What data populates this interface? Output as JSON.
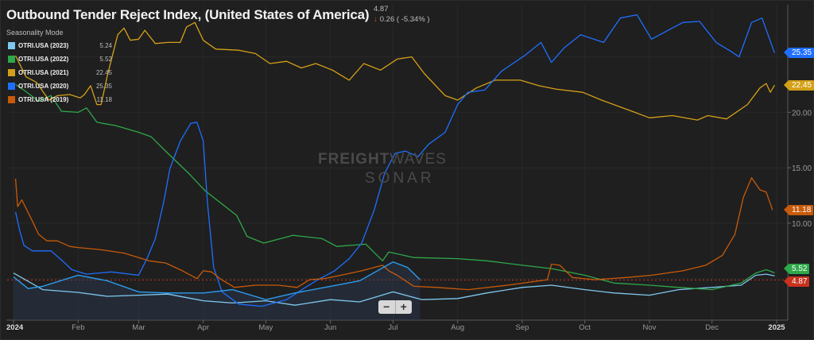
{
  "header": {
    "title": "Outbound Tender Reject Index, (United States of America)",
    "last_value": "4.87",
    "change_icon": "arrow-down-icon",
    "change_arrow": "↓",
    "change": "0.26 ( -5.34% )",
    "change_color": "#e24a3b"
  },
  "mode_label": "Seasonality Mode",
  "zoom_controls": {
    "minus": "−",
    "plus": "+"
  },
  "watermark": {
    "brand_bold": "FREIGHT",
    "brand_thin": "WAVES",
    "sub": "SONAR"
  },
  "chart_data": {
    "type": "line",
    "title": "Outbound Tender Reject Index, (United States of America)",
    "xlim": [
      "2024-01-01",
      "2025-01-01"
    ],
    "ylim": [
      1.25,
      29.7
    ],
    "grid": true,
    "legend_placement": "top-left",
    "x_ticks": [
      {
        "date": "2024-01-01",
        "label": "2024",
        "bold": true
      },
      {
        "date": "2024-02-01",
        "label": "Feb"
      },
      {
        "date": "2024-03-01",
        "label": "Mar"
      },
      {
        "date": "2024-04-01",
        "label": "Apr"
      },
      {
        "date": "2024-05-01",
        "label": "May"
      },
      {
        "date": "2024-06-01",
        "label": "Jun"
      },
      {
        "date": "2024-07-01",
        "label": "Jul"
      },
      {
        "date": "2024-08-01",
        "label": "Aug"
      },
      {
        "date": "2024-09-01",
        "label": "Sep"
      },
      {
        "date": "2024-10-01",
        "label": "Oct"
      },
      {
        "date": "2024-11-01",
        "label": "Nov"
      },
      {
        "date": "2024-12-01",
        "label": "Dec"
      },
      {
        "date": "2025-01-01",
        "label": "2025",
        "bold": true
      }
    ],
    "y_ticks": [
      {
        "value": 10,
        "label": "10.00"
      },
      {
        "value": 15,
        "label": "15.00"
      },
      {
        "value": 20,
        "label": "20.00"
      }
    ],
    "reference_line": {
      "value": 4.87,
      "label": "4.87",
      "color": "#c8321e"
    },
    "current_series": {
      "color": "#2b9bf0",
      "area": true,
      "points": [
        [
          "2024-01-01",
          5.15
        ],
        [
          "2024-01-08",
          4.1
        ],
        [
          "2024-01-15",
          4.3
        ],
        [
          "2024-02-01",
          5.3
        ],
        [
          "2024-02-15",
          4.8
        ],
        [
          "2024-03-01",
          3.8
        ],
        [
          "2024-03-15",
          3.7
        ],
        [
          "2024-04-01",
          3.7
        ],
        [
          "2024-04-15",
          4.0
        ],
        [
          "2024-05-01",
          3.1
        ],
        [
          "2024-05-15",
          3.7
        ],
        [
          "2024-06-01",
          4.3
        ],
        [
          "2024-06-15",
          4.8
        ],
        [
          "2024-07-01",
          6.5
        ],
        [
          "2024-07-08",
          6.0
        ],
        [
          "2024-07-14",
          4.9
        ]
      ]
    },
    "series": [
      {
        "name": "OTRI.USA (2023)",
        "value": "5.24",
        "color": "#7ec8f0",
        "points": [
          [
            "2024-01-01",
            5.5
          ],
          [
            "2024-01-15",
            4.0
          ],
          [
            "2024-02-01",
            3.75
          ],
          [
            "2024-02-15",
            3.4
          ],
          [
            "2024-03-01",
            3.5
          ],
          [
            "2024-03-15",
            3.6
          ],
          [
            "2024-04-01",
            3.0
          ],
          [
            "2024-04-15",
            2.8
          ],
          [
            "2024-05-01",
            3.0
          ],
          [
            "2024-05-15",
            2.6
          ],
          [
            "2024-06-01",
            3.1
          ],
          [
            "2024-06-15",
            2.9
          ],
          [
            "2024-07-01",
            3.8
          ],
          [
            "2024-07-15",
            3.1
          ],
          [
            "2024-08-01",
            3.2
          ],
          [
            "2024-08-15",
            3.7
          ],
          [
            "2024-09-01",
            4.2
          ],
          [
            "2024-09-15",
            4.4
          ],
          [
            "2024-10-01",
            4.0
          ],
          [
            "2024-10-15",
            3.7
          ],
          [
            "2024-11-01",
            3.5
          ],
          [
            "2024-11-15",
            4.0
          ],
          [
            "2024-12-01",
            4.2
          ],
          [
            "2024-12-15",
            4.4
          ],
          [
            "2024-12-22",
            5.3
          ],
          [
            "2024-12-27",
            5.4
          ],
          [
            "2024-12-31",
            5.24
          ]
        ]
      },
      {
        "name": "OTRI.USA (2022)",
        "value": "5.52",
        "color": "#2ea84a",
        "points": [
          [
            "2024-01-02",
            22.5
          ],
          [
            "2024-01-06",
            22.0
          ],
          [
            "2024-01-13",
            21.0
          ],
          [
            "2024-01-19",
            21.5
          ],
          [
            "2024-01-24",
            20.1
          ],
          [
            "2024-02-01",
            20.0
          ],
          [
            "2024-02-05",
            20.4
          ],
          [
            "2024-02-10",
            19.1
          ],
          [
            "2024-02-19",
            18.8
          ],
          [
            "2024-03-01",
            18.2
          ],
          [
            "2024-03-07",
            17.8
          ],
          [
            "2024-03-15",
            16.3
          ],
          [
            "2024-03-25",
            14.5
          ],
          [
            "2024-04-02",
            12.9
          ],
          [
            "2024-04-17",
            10.7
          ],
          [
            "2024-04-22",
            8.8
          ],
          [
            "2024-04-30",
            8.2
          ],
          [
            "2024-05-14",
            8.9
          ],
          [
            "2024-05-28",
            8.6
          ],
          [
            "2024-06-04",
            7.9
          ],
          [
            "2024-06-18",
            8.1
          ],
          [
            "2024-06-26",
            6.6
          ],
          [
            "2024-06-29",
            7.4
          ],
          [
            "2024-07-11",
            6.9
          ],
          [
            "2024-08-01",
            6.8
          ],
          [
            "2024-08-15",
            6.6
          ],
          [
            "2024-09-01",
            6.2
          ],
          [
            "2024-09-15",
            5.9
          ],
          [
            "2024-10-01",
            5.3
          ],
          [
            "2024-10-15",
            4.6
          ],
          [
            "2024-11-01",
            4.4
          ],
          [
            "2024-11-15",
            4.2
          ],
          [
            "2024-12-01",
            4.0
          ],
          [
            "2024-12-15",
            4.6
          ],
          [
            "2024-12-22",
            5.5
          ],
          [
            "2024-12-27",
            5.8
          ],
          [
            "2024-12-31",
            5.52
          ]
        ]
      },
      {
        "name": "OTRI.USA (2021)",
        "value": "22.45",
        "color": "#d4a017",
        "points": [
          [
            "2024-01-02",
            25.1
          ],
          [
            "2024-01-07",
            23.2
          ],
          [
            "2024-01-12",
            22.7
          ],
          [
            "2024-01-18",
            21.1
          ],
          [
            "2024-01-22",
            21.5
          ],
          [
            "2024-01-28",
            21.6
          ],
          [
            "2024-02-02",
            21.3
          ],
          [
            "2024-02-04",
            21.6
          ],
          [
            "2024-02-07",
            22.4
          ],
          [
            "2024-02-10",
            20.7
          ],
          [
            "2024-02-12",
            20.7
          ],
          [
            "2024-02-15",
            23.3
          ],
          [
            "2024-02-20",
            27.0
          ],
          [
            "2024-02-23",
            27.6
          ],
          [
            "2024-02-26",
            26.5
          ],
          [
            "2024-03-01",
            26.6
          ],
          [
            "2024-03-04",
            27.4
          ],
          [
            "2024-03-09",
            26.2
          ],
          [
            "2024-03-15",
            26.3
          ],
          [
            "2024-03-21",
            26.3
          ],
          [
            "2024-03-24",
            27.7
          ],
          [
            "2024-03-28",
            28.1
          ],
          [
            "2024-04-01",
            26.5
          ],
          [
            "2024-04-07",
            25.7
          ],
          [
            "2024-04-18",
            25.6
          ],
          [
            "2024-04-26",
            25.3
          ],
          [
            "2024-05-03",
            24.4
          ],
          [
            "2024-05-11",
            24.6
          ],
          [
            "2024-05-18",
            24.0
          ],
          [
            "2024-05-25",
            24.4
          ],
          [
            "2024-06-02",
            23.8
          ],
          [
            "2024-06-10",
            22.9
          ],
          [
            "2024-06-17",
            24.4
          ],
          [
            "2024-06-25",
            23.8
          ],
          [
            "2024-07-03",
            24.8
          ],
          [
            "2024-07-10",
            25.0
          ],
          [
            "2024-07-16",
            23.5
          ],
          [
            "2024-07-26",
            21.5
          ],
          [
            "2024-08-01",
            21.1
          ],
          [
            "2024-08-10",
            22.2
          ],
          [
            "2024-08-19",
            22.9
          ],
          [
            "2024-08-31",
            22.9
          ],
          [
            "2024-09-09",
            22.4
          ],
          [
            "2024-09-17",
            22.1
          ],
          [
            "2024-09-30",
            21.8
          ],
          [
            "2024-10-09",
            21.1
          ],
          [
            "2024-10-25",
            20.0
          ],
          [
            "2024-11-01",
            19.5
          ],
          [
            "2024-11-12",
            19.7
          ],
          [
            "2024-11-24",
            19.3
          ],
          [
            "2024-11-29",
            19.7
          ],
          [
            "2024-12-08",
            19.4
          ],
          [
            "2024-12-18",
            20.7
          ],
          [
            "2024-12-24",
            22.2
          ],
          [
            "2024-12-27",
            22.6
          ],
          [
            "2024-12-29",
            21.8
          ],
          [
            "2024-12-31",
            22.45
          ]
        ]
      },
      {
        "name": "OTRI.USA (2020)",
        "value": "25.35",
        "color": "#1f6fff",
        "points": [
          [
            "2024-01-02",
            11.0
          ],
          [
            "2024-01-04",
            9.3
          ],
          [
            "2024-01-06",
            8.0
          ],
          [
            "2024-01-10",
            7.5
          ],
          [
            "2024-01-19",
            7.5
          ],
          [
            "2024-01-25",
            6.5
          ],
          [
            "2024-01-29",
            5.8
          ],
          [
            "2024-02-05",
            5.4
          ],
          [
            "2024-02-17",
            5.6
          ],
          [
            "2024-03-01",
            5.3
          ],
          [
            "2024-03-05",
            6.8
          ],
          [
            "2024-03-09",
            8.6
          ],
          [
            "2024-03-13",
            11.9
          ],
          [
            "2024-03-16",
            14.9
          ],
          [
            "2024-03-21",
            17.4
          ],
          [
            "2024-03-26",
            19.0
          ],
          [
            "2024-03-29",
            19.1
          ],
          [
            "2024-04-01",
            17.4
          ],
          [
            "2024-04-03",
            11.9
          ],
          [
            "2024-04-06",
            6.0
          ],
          [
            "2024-04-10",
            3.8
          ],
          [
            "2024-04-18",
            2.7
          ],
          [
            "2024-04-29",
            2.5
          ],
          [
            "2024-05-11",
            3.1
          ],
          [
            "2024-05-20",
            4.2
          ],
          [
            "2024-05-26",
            4.9
          ],
          [
            "2024-06-03",
            5.7
          ],
          [
            "2024-06-10",
            6.8
          ],
          [
            "2024-06-16",
            8.2
          ],
          [
            "2024-06-22",
            11.2
          ],
          [
            "2024-06-27",
            14.5
          ],
          [
            "2024-07-02",
            16.3
          ],
          [
            "2024-07-07",
            16.5
          ],
          [
            "2024-07-13",
            16.0
          ],
          [
            "2024-07-18",
            17.1
          ],
          [
            "2024-07-26",
            18.2
          ],
          [
            "2024-08-01",
            20.7
          ],
          [
            "2024-08-06",
            21.8
          ],
          [
            "2024-08-14",
            22.0
          ],
          [
            "2024-08-22",
            23.7
          ],
          [
            "2024-09-02",
            25.1
          ],
          [
            "2024-09-10",
            26.3
          ],
          [
            "2024-09-15",
            24.5
          ],
          [
            "2024-09-21",
            25.8
          ],
          [
            "2024-09-29",
            27.0
          ],
          [
            "2024-10-10",
            26.3
          ],
          [
            "2024-10-18",
            28.5
          ],
          [
            "2024-10-26",
            28.8
          ],
          [
            "2024-11-02",
            26.6
          ],
          [
            "2024-11-10",
            27.4
          ],
          [
            "2024-11-17",
            28.1
          ],
          [
            "2024-11-25",
            28.2
          ],
          [
            "2024-12-03",
            26.3
          ],
          [
            "2024-12-10",
            25.5
          ],
          [
            "2024-12-14",
            25.0
          ],
          [
            "2024-12-20",
            28.1
          ],
          [
            "2024-12-25",
            28.5
          ],
          [
            "2024-12-31",
            25.35
          ]
        ]
      },
      {
        "name": "OTRI.USA (2019)",
        "value": "11.18",
        "color": "#c85a0a",
        "points": [
          [
            "2024-01-02",
            14.0
          ],
          [
            "2024-01-03",
            11.5
          ],
          [
            "2024-01-05",
            12.1
          ],
          [
            "2024-01-10",
            10.2
          ],
          [
            "2024-01-13",
            9.0
          ],
          [
            "2024-01-17",
            8.4
          ],
          [
            "2024-01-22",
            8.4
          ],
          [
            "2024-01-28",
            7.9
          ],
          [
            "2024-02-01",
            7.8
          ],
          [
            "2024-02-12",
            7.6
          ],
          [
            "2024-02-23",
            7.3
          ],
          [
            "2024-03-06",
            6.6
          ],
          [
            "2024-03-14",
            6.4
          ],
          [
            "2024-03-22",
            5.7
          ],
          [
            "2024-03-29",
            5.0
          ],
          [
            "2024-04-01",
            5.7
          ],
          [
            "2024-04-05",
            5.6
          ],
          [
            "2024-04-09",
            5.0
          ],
          [
            "2024-04-16",
            4.2
          ],
          [
            "2024-04-26",
            4.4
          ],
          [
            "2024-05-07",
            4.4
          ],
          [
            "2024-05-16",
            4.2
          ],
          [
            "2024-05-22",
            4.9
          ],
          [
            "2024-05-29",
            5.0
          ],
          [
            "2024-06-06",
            5.3
          ],
          [
            "2024-06-16",
            5.7
          ],
          [
            "2024-06-26",
            6.2
          ],
          [
            "2024-06-29",
            5.7
          ],
          [
            "2024-07-03",
            5.3
          ],
          [
            "2024-07-11",
            4.3
          ],
          [
            "2024-07-22",
            4.2
          ],
          [
            "2024-08-06",
            4.0
          ],
          [
            "2024-08-25",
            4.4
          ],
          [
            "2024-09-13",
            4.9
          ],
          [
            "2024-09-15",
            6.3
          ],
          [
            "2024-09-19",
            6.2
          ],
          [
            "2024-09-25",
            5.1
          ],
          [
            "2024-10-06",
            4.9
          ],
          [
            "2024-10-21",
            5.1
          ],
          [
            "2024-11-02",
            5.3
          ],
          [
            "2024-11-17",
            5.7
          ],
          [
            "2024-11-28",
            6.2
          ],
          [
            "2024-12-06",
            7.1
          ],
          [
            "2024-12-12",
            9.0
          ],
          [
            "2024-12-16",
            12.3
          ],
          [
            "2024-12-20",
            14.1
          ],
          [
            "2024-12-24",
            13.0
          ],
          [
            "2024-12-27",
            12.8
          ],
          [
            "2024-12-30",
            11.18
          ]
        ]
      }
    ]
  }
}
